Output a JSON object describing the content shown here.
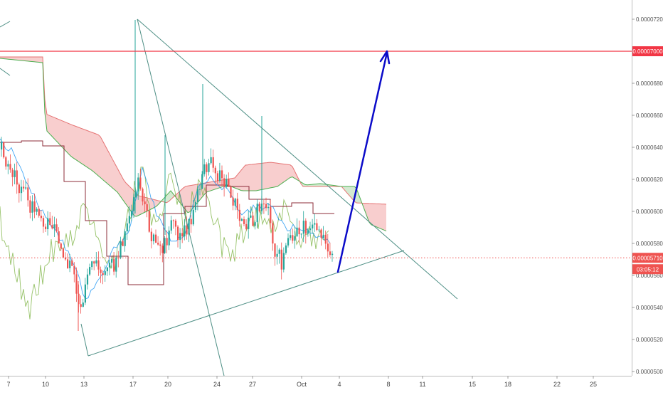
{
  "chart_data": {
    "type": "candlestick",
    "x_axis": {
      "tick_labels": [
        "7",
        "10",
        "13",
        "17",
        "20",
        "24",
        "27",
        "Oct",
        "4",
        "8",
        "11",
        "15",
        "18",
        "22",
        "25"
      ]
    },
    "y_axis": {
      "side": "right",
      "range": [
        4.97e-05,
        7.35e-05
      ],
      "tick_values": [
        5e-05,
        5.2e-05,
        5.4e-05,
        5.6e-05,
        5.8e-05,
        6e-05,
        6.2e-05,
        6.4e-05,
        6.6e-05,
        6.8e-05,
        7e-05,
        7.2e-05
      ],
      "tick_labels": [
        "0.00005000",
        "0.00005200",
        "0.00005400",
        "0.00005600",
        "0.00005800",
        "0.00006000",
        "0.00006200",
        "0.00006400",
        "0.00006600",
        "0.00006800",
        "0.00007000",
        "0.00007200"
      ]
    },
    "price_badges": {
      "target": {
        "value": 7e-05,
        "label": "0.00007000",
        "color": "#f23645"
      },
      "last": {
        "value": 5.71e-05,
        "label": "0.00005710",
        "color": "#ef5350"
      },
      "countdown": {
        "label": "03:05:12",
        "color": "#ef5350"
      }
    },
    "horizontal_levels": [
      {
        "value": 7e-05,
        "color": "#f23645",
        "style": "solid"
      },
      {
        "value": 5.71e-05,
        "color": "#ef5350",
        "style": "dotted"
      }
    ],
    "series_colors": {
      "up_candle": "#26a69a",
      "down_candle": "#ef5350",
      "cloud_bearish": "#f7c9c9",
      "cloud_bullish": "#cfe8cc",
      "tenkan": "#2196f3",
      "kijun": "#8d2c3a",
      "chikou": "#7cb342",
      "span_a": "#4caf50",
      "span_b": "#e57373",
      "drawing_line": "#4e8f85",
      "projection_arrow": "#0b0bc9"
    },
    "grid": false,
    "legend": "none"
  }
}
